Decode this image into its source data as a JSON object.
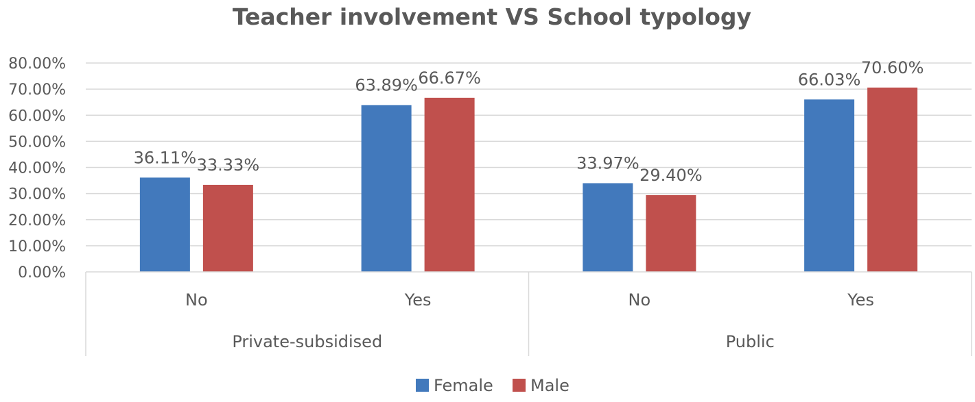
{
  "chart_data": {
    "type": "bar",
    "title": "Teacher involvement VS School typology",
    "groups": [
      {
        "label": "Private-subsidised",
        "categories": [
          "No",
          "Yes"
        ]
      },
      {
        "label": "Public",
        "categories": [
          "No",
          "Yes"
        ]
      }
    ],
    "categories": [
      "No",
      "Yes",
      "No",
      "Yes"
    ],
    "series": [
      {
        "name": "Female",
        "color": "#4279BC",
        "values": [
          36.11,
          63.89,
          33.97,
          66.03
        ],
        "labels": [
          "36.11%",
          "63.89%",
          "33.97%",
          "66.03%"
        ]
      },
      {
        "name": "Male",
        "color": "#C0504D",
        "values": [
          33.33,
          66.67,
          29.4,
          70.6
        ],
        "labels": [
          "33.33%",
          "66.67%",
          "29.40%",
          "70.60%"
        ]
      }
    ],
    "ylim": [
      0,
      80
    ],
    "yticks": [
      "0.00%",
      "10.00%",
      "20.00%",
      "30.00%",
      "40.00%",
      "50.00%",
      "60.00%",
      "70.00%",
      "80.00%"
    ],
    "grid": true,
    "legend_position": "bottom",
    "gridline_color": "#D9D9D9"
  }
}
